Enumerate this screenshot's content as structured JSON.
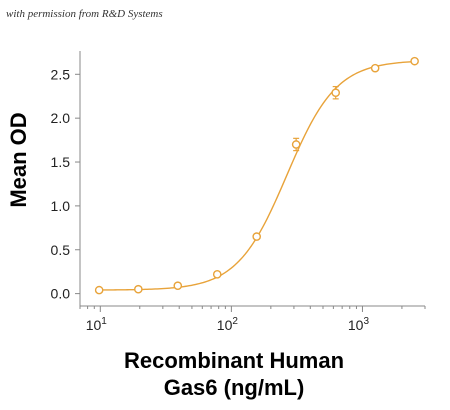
{
  "watermark": "with permission from R&D Systems",
  "chart_data": {
    "type": "scatter",
    "title": "",
    "xlabel_lines": [
      "Recombinant Human",
      "Gas6 (ng/mL)"
    ],
    "ylabel": "Mean OD",
    "x_scale": "log",
    "xlim": [
      7,
      3000
    ],
    "ylim": [
      -0.05,
      2.72
    ],
    "x_ticks": [
      {
        "value": 10,
        "base": "10",
        "exp": "1"
      },
      {
        "value": 100,
        "base": "10",
        "exp": "2"
      },
      {
        "value": 1000,
        "base": "10",
        "exp": "3"
      }
    ],
    "y_ticks": [
      0.0,
      0.5,
      1.0,
      1.5,
      2.0,
      2.5
    ],
    "y_tick_labels": [
      "0.0",
      "0.5",
      "1.0",
      "1.5",
      "2.0",
      "2.5"
    ],
    "grid": false,
    "series": [
      {
        "color": "#E8A33A",
        "marker": "open-circle",
        "points": [
          {
            "x": 9.8,
            "y": 0.04,
            "err": 0.0
          },
          {
            "x": 19.5,
            "y": 0.05,
            "err": 0.0
          },
          {
            "x": 39,
            "y": 0.09,
            "err": 0.0
          },
          {
            "x": 78,
            "y": 0.22,
            "err": 0.02
          },
          {
            "x": 156,
            "y": 0.65,
            "err": 0.02
          },
          {
            "x": 312,
            "y": 1.7,
            "err": 0.07
          },
          {
            "x": 625,
            "y": 2.29,
            "err": 0.07
          },
          {
            "x": 1250,
            "y": 2.57,
            "err": 0.02
          },
          {
            "x": 2500,
            "y": 2.65,
            "err": 0.02
          }
        ]
      }
    ],
    "fit_curve": {
      "type": "4PL",
      "bottom": 0.04,
      "top": 2.66,
      "ec50": 265,
      "hill": 2.3
    }
  }
}
